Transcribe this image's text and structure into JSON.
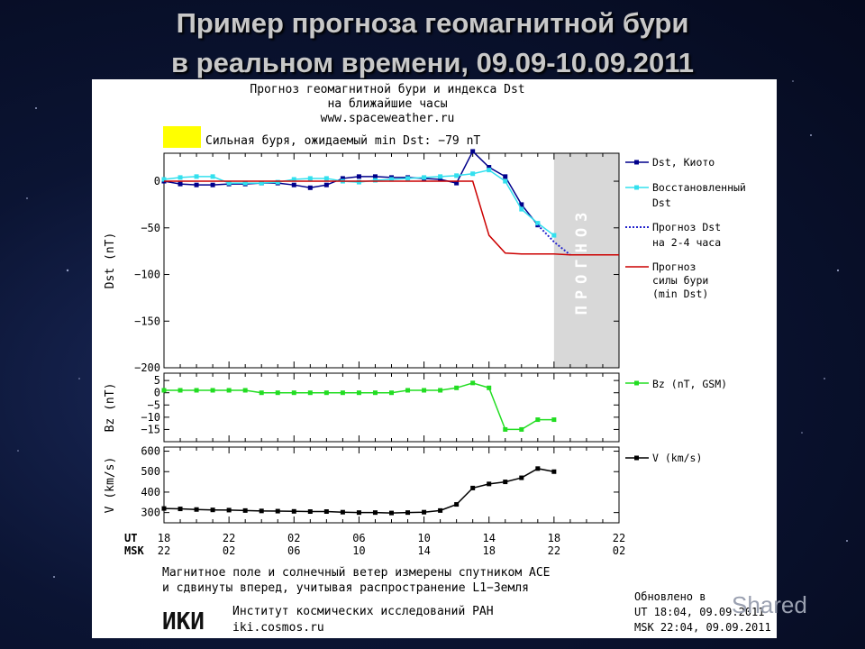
{
  "slide": {
    "title_line1": "Пример прогноза геомагнитной бури",
    "title_line2": "в реальном времени, 09.09-10.09.2011"
  },
  "header": {
    "line1": "Прогноз геомагнитной бури и индекса Dst",
    "line2": "на ближайшие часы",
    "url": "www.spaceweather.ru",
    "storm_text": "Сильная буря, ожидаемый min Dst: −79 nT",
    "storm_color": "#ffff00"
  },
  "forecast_band_label": "ПРОГНОЗ",
  "colors": {
    "dst_kyoto": "#00008b",
    "dst_restored": "#33e0ee",
    "dst_forecast": "#2222cc",
    "storm_forecast": "#cc0000",
    "bz": "#22dd22",
    "v": "#000000",
    "forecast_band": "#d8d8d8"
  },
  "chart_data": [
    {
      "type": "line",
      "panel": "dst",
      "ylabel": "Dst (nT)",
      "ylim": [
        -200,
        30
      ],
      "yticks": [
        0,
        -50,
        -100,
        -150,
        -200
      ],
      "ytick_labels": [
        "0",
        "−50",
        "−100",
        "−150",
        "−200"
      ],
      "xlim": [
        0,
        28
      ],
      "forecast_region": [
        24,
        28
      ],
      "series": [
        {
          "name": "Dst, Киото",
          "style": "line-markers",
          "color": "#00008b",
          "x": [
            0,
            1,
            2,
            3,
            4,
            5,
            6,
            7,
            8,
            9,
            10,
            11,
            12,
            13,
            14,
            15,
            16,
            17,
            18,
            19,
            20,
            21,
            22,
            23
          ],
          "y": [
            0,
            -3,
            -4,
            -4,
            -3,
            -3,
            -2,
            -2,
            -4,
            -7,
            -4,
            3,
            5,
            5,
            4,
            4,
            3,
            2,
            -2,
            32,
            15,
            5,
            -25,
            -47
          ]
        },
        {
          "name": "Восстановленный Dst",
          "style": "line-markers",
          "color": "#33e0ee",
          "x": [
            0,
            1,
            2,
            3,
            4,
            5,
            6,
            7,
            8,
            9,
            10,
            11,
            12,
            13,
            14,
            15,
            16,
            17,
            18,
            19,
            20,
            21,
            22,
            23,
            24
          ],
          "y": [
            2,
            4,
            5,
            5,
            -2,
            -2,
            -2,
            -1,
            2,
            3,
            3,
            0,
            -1,
            1,
            2,
            3,
            4,
            5,
            6,
            8,
            12,
            0,
            -30,
            -45,
            -58
          ]
        },
        {
          "name": "Прогноз Dst на 2-4 часа",
          "style": "dotted",
          "color": "#2222cc",
          "x": [
            23,
            24,
            25
          ],
          "y": [
            -47,
            -65,
            -79
          ]
        },
        {
          "name": "Прогноз силы бури (min Dst)",
          "style": "line",
          "color": "#cc0000",
          "x": [
            0,
            18,
            19,
            20,
            21,
            22,
            23,
            24,
            25,
            26,
            27,
            28
          ],
          "y": [
            0,
            0,
            0,
            -58,
            -77,
            -78,
            -78,
            -78,
            -79,
            -79,
            -79,
            -79
          ]
        }
      ]
    },
    {
      "type": "line",
      "panel": "bz",
      "ylabel": "Bz (nT)",
      "ylim": [
        -20,
        8
      ],
      "yticks": [
        5,
        0,
        -5,
        -10,
        -15
      ],
      "ytick_labels": [
        "5",
        "0",
        "−5",
        "−10",
        "−15"
      ],
      "series": [
        {
          "name": "Bz (nT, GSM)",
          "color": "#22dd22",
          "x": [
            0,
            1,
            2,
            3,
            4,
            5,
            6,
            7,
            8,
            9,
            10,
            11,
            12,
            13,
            14,
            15,
            16,
            17,
            18,
            19,
            20,
            21,
            22,
            23,
            24
          ],
          "y": [
            1,
            1,
            1,
            1,
            1,
            1,
            0,
            0,
            0,
            0,
            0,
            0,
            0,
            0,
            0,
            1,
            1,
            1,
            2,
            4,
            2,
            -15,
            -15,
            -11,
            -11
          ]
        }
      ]
    },
    {
      "type": "line",
      "panel": "v",
      "ylabel": "V (km/s)",
      "ylim": [
        250,
        620
      ],
      "yticks": [
        600,
        500,
        400,
        300
      ],
      "ytick_labels": [
        "600",
        "500",
        "400",
        "300"
      ],
      "series": [
        {
          "name": "V (km/s)",
          "color": "#000000",
          "x": [
            0,
            1,
            2,
            3,
            4,
            5,
            6,
            7,
            8,
            9,
            10,
            11,
            12,
            13,
            14,
            15,
            16,
            17,
            18,
            19,
            20,
            21,
            22,
            23,
            24
          ],
          "y": [
            320,
            318,
            315,
            313,
            312,
            310,
            308,
            307,
            306,
            305,
            305,
            302,
            300,
            300,
            298,
            300,
            302,
            310,
            340,
            420,
            440,
            450,
            470,
            515,
            500
          ]
        }
      ]
    }
  ],
  "xaxis": {
    "ut_label": "UT",
    "msk_label": "MSK",
    "tick_x": [
      0,
      4,
      8,
      12,
      16,
      20,
      24,
      28
    ],
    "ut_ticks": [
      "18",
      "22",
      "02",
      "06",
      "10",
      "14",
      "18",
      "22"
    ],
    "msk_ticks": [
      "22",
      "02",
      "06",
      "10",
      "14",
      "18",
      "22",
      "02"
    ]
  },
  "footer": {
    "note_line1": "Магнитное поле и солнечный ветер измерены спутником ACE",
    "note_line2": "и сдвинуты вперед, учитывая распространение L1−Земля",
    "logo_text": "ИКИ",
    "institute": "Институт космических исследований РАН",
    "site": "iki.cosmos.ru",
    "updated_label": "Обновлено в",
    "updated_ut": "UT  18:04, 09.09.2011",
    "updated_msk": "MSK 22:04, 09.09.2011"
  },
  "watermark": "Shared"
}
